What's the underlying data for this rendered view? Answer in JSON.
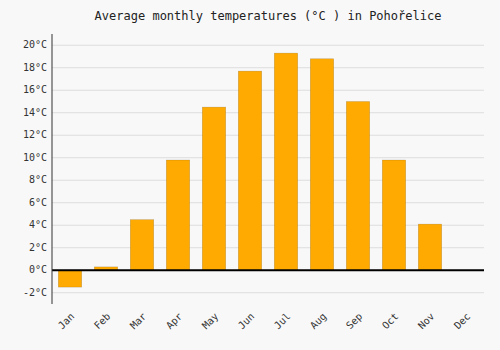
{
  "chart_data": {
    "type": "bar",
    "title": "Average monthly temperatures (°C ) in Pohořelice",
    "categories": [
      "Jan",
      "Feb",
      "Mar",
      "Apr",
      "May",
      "Jun",
      "Jul",
      "Aug",
      "Sep",
      "Oct",
      "Nov",
      "Dec"
    ],
    "values": [
      -1.5,
      0.3,
      4.5,
      9.8,
      14.5,
      17.7,
      19.3,
      18.8,
      15.0,
      9.8,
      4.1,
      0.0
    ],
    "color": "#FFAA00",
    "ylim": [
      -3,
      21
    ],
    "yticks": [
      {
        "value": -2,
        "label": "-2°C"
      },
      {
        "value": 0,
        "label": "0°C"
      },
      {
        "value": 2,
        "label": "2°C"
      },
      {
        "value": 4,
        "label": "4°C"
      },
      {
        "value": 6,
        "label": "6°C"
      },
      {
        "value": 8,
        "label": "8°C"
      },
      {
        "value": 10,
        "label": "10°C"
      },
      {
        "value": 12,
        "label": "12°C"
      },
      {
        "value": 14,
        "label": "14°C"
      },
      {
        "value": 16,
        "label": "16°C"
      },
      {
        "value": 18,
        "label": "18°C"
      },
      {
        "value": 20,
        "label": "20°C"
      }
    ],
    "grid": true
  }
}
